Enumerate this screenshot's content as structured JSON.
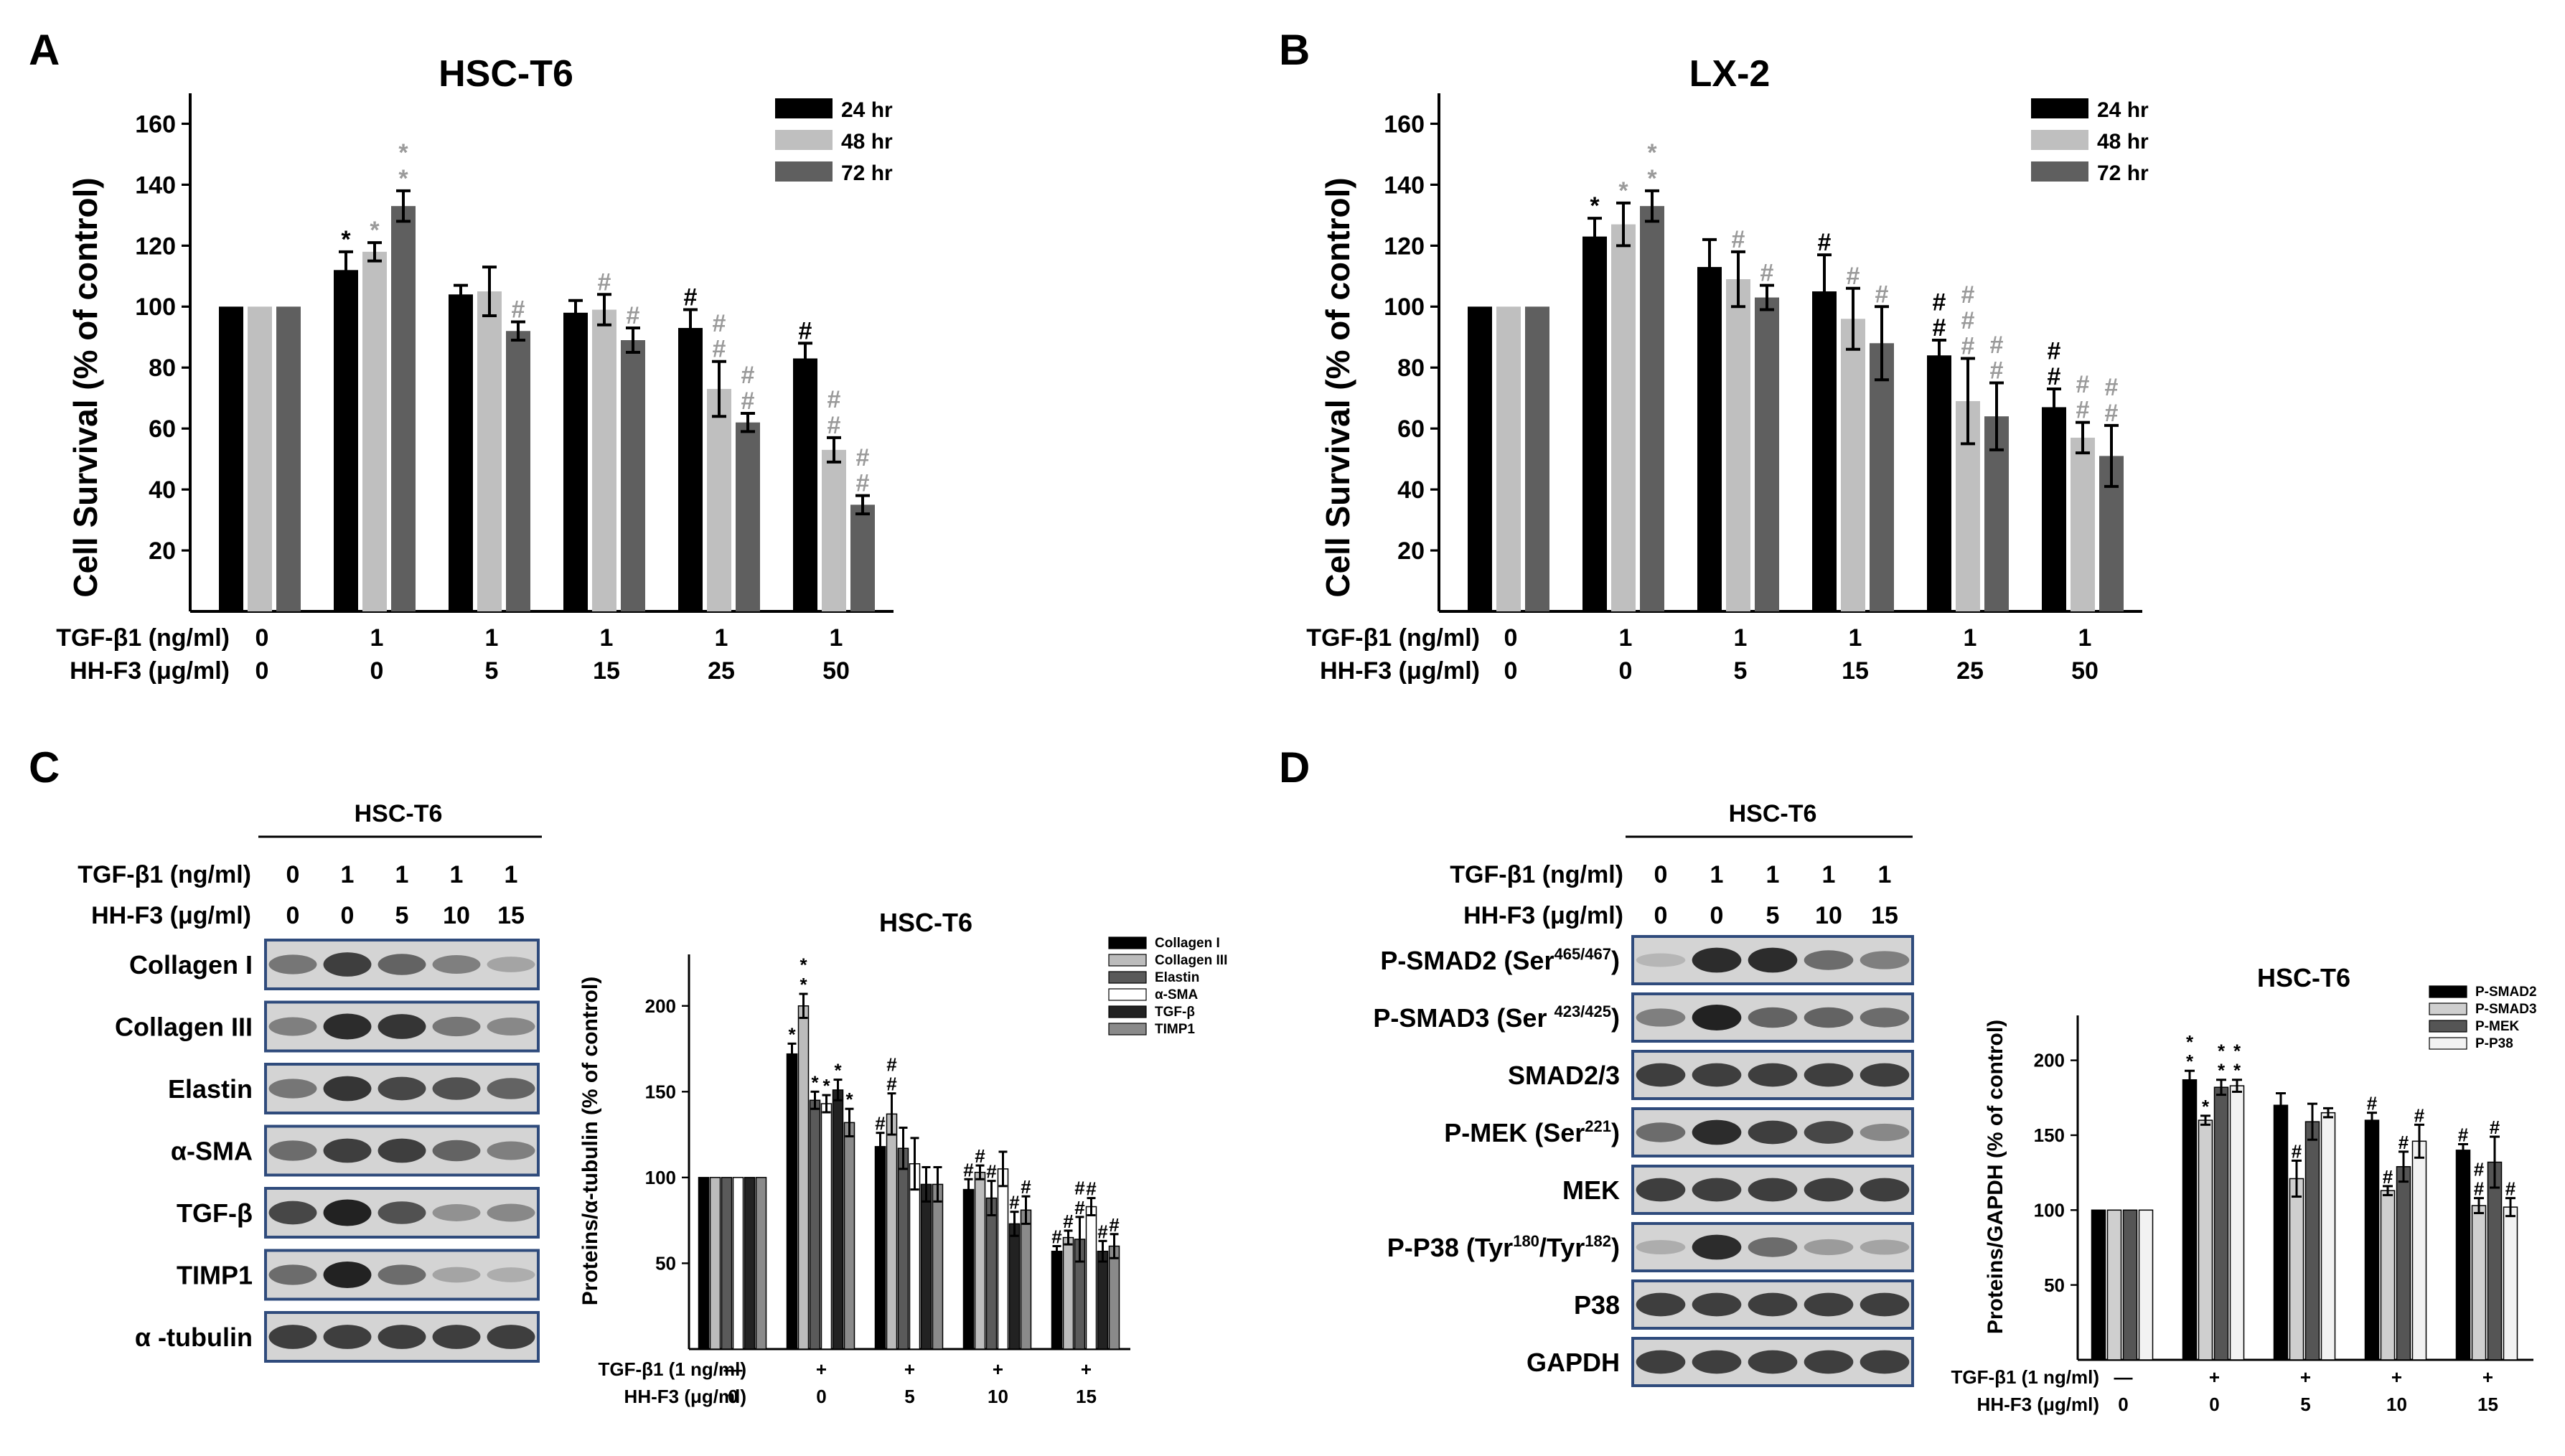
{
  "colors": {
    "s24": "#000000",
    "s48": "#bfbfbf",
    "s72": "#5f5f5f",
    "gray_mark": "#9a9a9a",
    "frame": "#2f4b7c"
  },
  "panel_labels": [
    "A",
    "B",
    "C",
    "D"
  ],
  "treatments": {
    "tgf_label": "TGF-β1 (ng/ml)",
    "hh_label": "HH-F3 (μg/ml)",
    "tgf_values": [
      "0",
      "1",
      "1",
      "1",
      "1",
      "1"
    ],
    "hh_values": [
      "0",
      "0",
      "5",
      "15",
      "25",
      "50"
    ],
    "tgf_label_1ng": "TGF-β1 (1 ng/ml)",
    "hh_label_short": "HH-F3 (μg/ml)",
    "tgf_signs": [
      "—",
      "+",
      "+",
      "+",
      "+"
    ],
    "hh_values_cd": [
      "0",
      "0",
      "5",
      "10",
      "15"
    ]
  },
  "blots": {
    "C": {
      "title": "HSC-T6",
      "tgf_label": "TGF-β1 (ng/ml)",
      "hh_label": "HH-F3 (μg/ml)",
      "tgf_values": [
        "0",
        "1",
        "1",
        "1",
        "1"
      ],
      "hh_values": [
        "0",
        "0",
        "5",
        "10",
        "15"
      ],
      "rows": [
        {
          "label": "Collagen I",
          "bands": [
            0.5,
            0.8,
            0.6,
            0.45,
            0.25
          ]
        },
        {
          "label": "Collagen III",
          "bands": [
            0.45,
            0.9,
            0.85,
            0.5,
            0.4
          ]
        },
        {
          "label": "Elastin",
          "bands": [
            0.5,
            0.85,
            0.75,
            0.7,
            0.6
          ]
        },
        {
          "label": "α-SMA",
          "bands": [
            0.55,
            0.8,
            0.8,
            0.6,
            0.45
          ]
        },
        {
          "label": "TGF-β",
          "bands": [
            0.75,
            0.95,
            0.7,
            0.35,
            0.4
          ]
        },
        {
          "label": "TIMP1",
          "bands": [
            0.55,
            0.95,
            0.55,
            0.25,
            0.2
          ]
        },
        {
          "label": "α -tubulin",
          "bands": [
            0.8,
            0.8,
            0.8,
            0.8,
            0.8
          ]
        }
      ]
    },
    "D": {
      "title": "HSC-T6",
      "tgf_label": "TGF-β1 (ng/ml)",
      "hh_label": "HH-F3 (μg/ml)",
      "tgf_values": [
        "0",
        "1",
        "1",
        "1",
        "1"
      ],
      "hh_values": [
        "0",
        "0",
        "5",
        "10",
        "15"
      ],
      "rows": [
        {
          "label": "P-SMAD2 (Ser",
          "sup": "465/467",
          "tail": ")",
          "bands": [
            0.15,
            0.9,
            0.9,
            0.55,
            0.45
          ]
        },
        {
          "label": "P-SMAD3 (Ser ",
          "sup": "423/425",
          "tail": ")",
          "bands": [
            0.45,
            0.95,
            0.6,
            0.6,
            0.55
          ]
        },
        {
          "label": "SMAD2/3",
          "sup": "",
          "tail": "",
          "bands": [
            0.8,
            0.8,
            0.8,
            0.8,
            0.8
          ]
        },
        {
          "label": "P-MEK (Ser",
          "sup": "221",
          "tail": ")",
          "bands": [
            0.55,
            0.9,
            0.8,
            0.75,
            0.4
          ]
        },
        {
          "label": "MEK",
          "sup": "",
          "tail": "",
          "bands": [
            0.8,
            0.8,
            0.8,
            0.8,
            0.8
          ]
        },
        {
          "label": "P-P38 (Tyr",
          "sup": "180",
          "mid": "/Tyr",
          "sup2": "182",
          "tail": ")",
          "bands": [
            0.2,
            0.9,
            0.55,
            0.3,
            0.25
          ]
        },
        {
          "label": "P38",
          "sup": "",
          "tail": "",
          "bands": [
            0.8,
            0.8,
            0.8,
            0.8,
            0.8
          ]
        },
        {
          "label": "GAPDH",
          "sup": "",
          "tail": "",
          "bands": [
            0.8,
            0.8,
            0.8,
            0.8,
            0.8
          ]
        }
      ]
    }
  },
  "chart_data": [
    {
      "id": "A",
      "type": "bar",
      "title": "HSC-T6",
      "ylabel": "Cell Survival (% of control)",
      "ylim": [
        0,
        170
      ],
      "yticks": [
        20,
        40,
        60,
        80,
        100,
        120,
        140,
        160
      ],
      "categories": [
        "0/0",
        "1/0",
        "1/5",
        "1/15",
        "1/25",
        "1/50"
      ],
      "legend": [
        "24 hr",
        "48 hr",
        "72 hr"
      ],
      "series": [
        {
          "name": "24 hr",
          "values": [
            100,
            112,
            104,
            98,
            93,
            83
          ],
          "errors": [
            0,
            6,
            3,
            4,
            6,
            5
          ],
          "marks": [
            "",
            "*",
            "",
            "",
            "#",
            "#"
          ]
        },
        {
          "name": "48 hr",
          "values": [
            100,
            118,
            105,
            99,
            73,
            53
          ],
          "errors": [
            0,
            3,
            8,
            5,
            9,
            4
          ],
          "marks": [
            "",
            "*",
            "",
            "#",
            "#,#",
            "#,#"
          ]
        },
        {
          "name": "72 hr",
          "values": [
            100,
            133,
            92,
            89,
            62,
            35
          ],
          "errors": [
            0,
            5,
            3,
            4,
            3,
            3
          ],
          "marks": [
            "",
            "*,*",
            "#",
            "#",
            "#,#",
            "#,#"
          ]
        }
      ]
    },
    {
      "id": "B",
      "type": "bar",
      "title": "LX-2",
      "ylabel": "Cell Survival (% of control)",
      "ylim": [
        0,
        170
      ],
      "yticks": [
        20,
        40,
        60,
        80,
        100,
        120,
        140,
        160
      ],
      "categories": [
        "0/0",
        "1/0",
        "1/5",
        "1/15",
        "1/25",
        "1/50"
      ],
      "legend": [
        "24 hr",
        "48 hr",
        "72 hr"
      ],
      "series": [
        {
          "name": "24 hr",
          "values": [
            100,
            123,
            113,
            105,
            84,
            67
          ],
          "errors": [
            0,
            6,
            9,
            12,
            5,
            6
          ],
          "marks": [
            "",
            "*",
            "",
            "#",
            "#,#",
            "#,#"
          ]
        },
        {
          "name": "48 hr",
          "values": [
            100,
            127,
            109,
            96,
            69,
            57
          ],
          "errors": [
            0,
            7,
            9,
            10,
            14,
            5
          ],
          "marks": [
            "",
            "*",
            "#",
            "#",
            "#,#,#",
            "#,#"
          ]
        },
        {
          "name": "72 hr",
          "values": [
            100,
            133,
            103,
            88,
            64,
            51
          ],
          "errors": [
            0,
            5,
            4,
            12,
            11,
            10
          ],
          "marks": [
            "",
            "*,*",
            "#",
            "#",
            "#,#",
            "#,#"
          ]
        }
      ]
    },
    {
      "id": "C",
      "type": "bar",
      "title": "HSC-T6",
      "ylabel": "Proteins/α-tubulin (% of control)",
      "ylim": [
        0,
        230
      ],
      "yticks": [
        50,
        100,
        150,
        200
      ],
      "categories": [
        "0",
        "0",
        "5",
        "10",
        "15"
      ],
      "legend": [
        "Collagen I",
        "Collagen III",
        "Elastin",
        "α-SMA",
        "TGF-β",
        "TIMP1"
      ],
      "series": [
        {
          "name": "Collagen I",
          "values": [
            100,
            172,
            118,
            93,
            57
          ],
          "errors": [
            0,
            6,
            8,
            6,
            3
          ],
          "marks": [
            "",
            "*",
            "#",
            "#",
            "#"
          ]
        },
        {
          "name": "Collagen III",
          "values": [
            100,
            200,
            137,
            103,
            65
          ],
          "errors": [
            0,
            7,
            12,
            4,
            4
          ],
          "marks": [
            "",
            "*,*",
            "#,#",
            "#",
            "#"
          ]
        },
        {
          "name": "Elastin",
          "values": [
            100,
            145,
            117,
            88,
            64
          ],
          "errors": [
            0,
            5,
            12,
            10,
            13
          ],
          "marks": [
            "",
            "*",
            "",
            "#",
            "#,#"
          ]
        },
        {
          "name": "α-SMA",
          "values": [
            100,
            143,
            108,
            105,
            83
          ],
          "errors": [
            0,
            5,
            15,
            10,
            5
          ],
          "marks": [
            "",
            "*",
            "",
            "",
            "#"
          ]
        },
        {
          "name": "TGF-β",
          "values": [
            100,
            151,
            96,
            73,
            57
          ],
          "errors": [
            0,
            6,
            10,
            7,
            6
          ],
          "marks": [
            "",
            "*",
            "",
            "#",
            "#"
          ]
        },
        {
          "name": "TIMP1",
          "values": [
            100,
            132,
            96,
            81,
            60
          ],
          "errors": [
            0,
            8,
            10,
            8,
            7
          ],
          "marks": [
            "",
            "*",
            "",
            "#",
            "#"
          ]
        }
      ]
    },
    {
      "id": "D",
      "type": "bar",
      "title": "HSC-T6",
      "ylabel": "Proteins/GAPDH (% of control)",
      "ylim": [
        0,
        230
      ],
      "yticks": [
        50,
        100,
        150,
        200
      ],
      "categories": [
        "0",
        "0",
        "5",
        "10",
        "15"
      ],
      "legend": [
        "P-SMAD2",
        "P-SMAD3",
        "P-MEK",
        "P-P38"
      ],
      "series": [
        {
          "name": "P-SMAD2",
          "values": [
            100,
            187,
            170,
            160,
            140
          ],
          "errors": [
            0,
            6,
            8,
            5,
            4
          ],
          "marks": [
            "",
            "*,*",
            "",
            "#",
            "#"
          ]
        },
        {
          "name": "P-SMAD3",
          "values": [
            100,
            160,
            121,
            113,
            103
          ],
          "errors": [
            0,
            3,
            12,
            3,
            5
          ],
          "marks": [
            "",
            "*",
            "#",
            "#",
            "#,#"
          ]
        },
        {
          "name": "P-MEK",
          "values": [
            100,
            182,
            159,
            129,
            132
          ],
          "errors": [
            0,
            5,
            12,
            10,
            17
          ],
          "marks": [
            "",
            "*,*",
            "",
            "#",
            "#"
          ]
        },
        {
          "name": "P-P38",
          "values": [
            100,
            183,
            165,
            146,
            102
          ],
          "errors": [
            0,
            4,
            3,
            11,
            6
          ],
          "marks": [
            "",
            "*,*",
            "",
            "#",
            "#"
          ]
        }
      ]
    }
  ]
}
